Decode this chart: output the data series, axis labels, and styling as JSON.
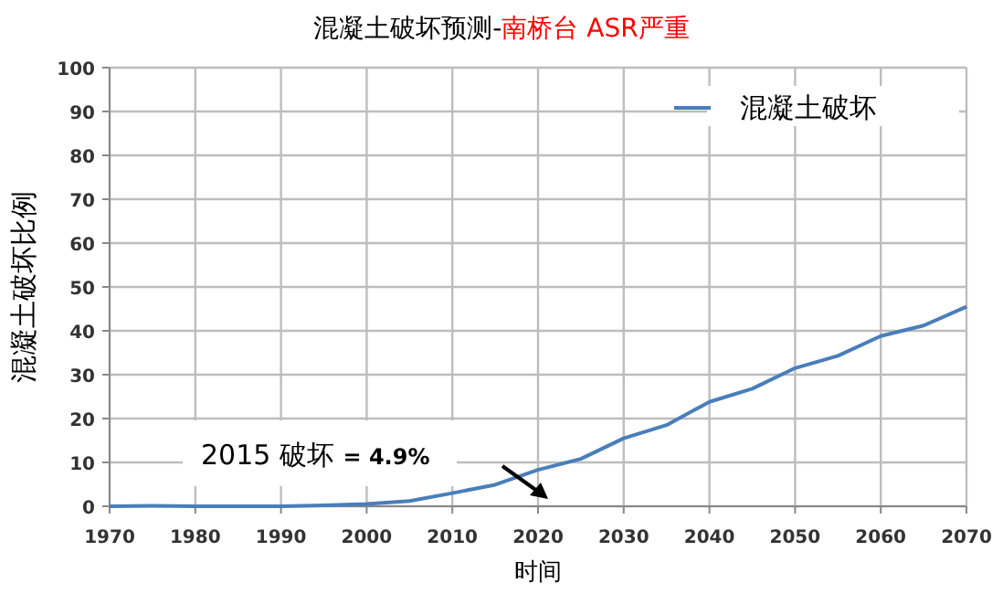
{
  "chart_data": {
    "type": "line",
    "title": "混凝土破坏预测-",
    "subtitle": "南桥台 ASR严重",
    "xlabel": "时间",
    "ylabel": "混凝土破坏比例",
    "x": [
      1970,
      1975,
      1980,
      1985,
      1990,
      1995,
      2000,
      2005,
      2010,
      2015,
      2020,
      2025,
      2030,
      2035,
      2040,
      2045,
      2050,
      2055,
      2060,
      2065,
      2070
    ],
    "series": [
      {
        "name": "混凝土破坏",
        "color": "#4a7ebb",
        "values": [
          0,
          0.1,
          0,
          0,
          0,
          0.2,
          0.5,
          1.2,
          3,
          4.9,
          8.3,
          10.8,
          15.5,
          18.5,
          23.8,
          26.8,
          31.5,
          34.3,
          38.8,
          41.2,
          45.5
        ]
      }
    ],
    "xlim": [
      1970,
      2070
    ],
    "xticks": [
      1970,
      1980,
      1990,
      2000,
      2010,
      2020,
      2030,
      2040,
      2050,
      2060,
      2070
    ],
    "ylim": [
      0,
      100
    ],
    "yticks": [
      0,
      10,
      20,
      30,
      40,
      50,
      60,
      70,
      80,
      90,
      100
    ],
    "grid": true,
    "legend": "top right",
    "marker": "none",
    "line_style": "solid",
    "annotations": [
      "2015 破坏 **= 4.9%**"
    ]
  }
}
